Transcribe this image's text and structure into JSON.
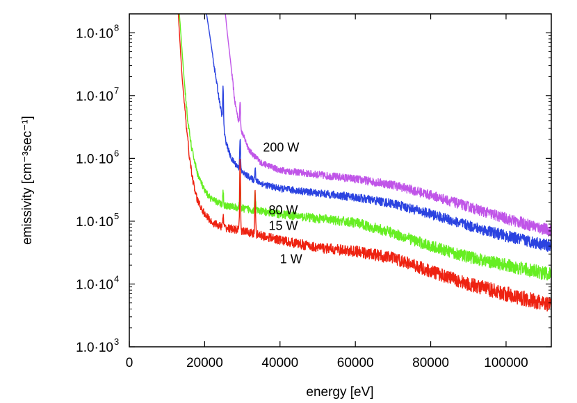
{
  "chart_data": {
    "type": "line",
    "title": "",
    "xlabel": "energy [eV]",
    "ylabel": "emissivity [cm⁻³sec⁻¹]",
    "xlim": [
      0,
      112000
    ],
    "ylim": [
      1000,
      200000000
    ],
    "yscale": "log",
    "x_ticks": [
      {
        "value": 0,
        "label": "0"
      },
      {
        "value": 20000,
        "label": "20000"
      },
      {
        "value": 40000,
        "label": "40000"
      },
      {
        "value": 60000,
        "label": "60000"
      },
      {
        "value": 80000,
        "label": "80000"
      },
      {
        "value": 100000,
        "label": "100000"
      }
    ],
    "y_ticks": [
      {
        "value": 1000,
        "mantissa": "1.0·10",
        "exp": "3"
      },
      {
        "value": 10000,
        "mantissa": "1.0·10",
        "exp": "4"
      },
      {
        "value": 100000,
        "mantissa": "1.0·10",
        "exp": "5"
      },
      {
        "value": 1000000,
        "mantissa": "1.0·10",
        "exp": "6"
      },
      {
        "value": 10000000,
        "mantissa": "1.0·10",
        "exp": "7"
      },
      {
        "value": 100000000,
        "mantissa": "1.0·10",
        "exp": "8"
      }
    ],
    "series": [
      {
        "name": "200 W",
        "color": "#c055e8",
        "noise": 0.07,
        "label_at": [
          35500,
          1500000
        ],
        "points": [
          [
            25500,
            200000000
          ],
          [
            26000,
            100000000
          ],
          [
            27000,
            30000000
          ],
          [
            28000,
            8000000
          ],
          [
            29000,
            4000000
          ],
          [
            30000,
            2500000
          ],
          [
            32000,
            1300000
          ],
          [
            35000,
            850000
          ],
          [
            40000,
            650000
          ],
          [
            50000,
            550000
          ],
          [
            60000,
            470000
          ],
          [
            70000,
            380000
          ],
          [
            80000,
            260000
          ],
          [
            90000,
            170000
          ],
          [
            100000,
            110000
          ],
          [
            112000,
            70000
          ]
        ],
        "peaks": [
          [
            29400,
            0.9
          ]
        ]
      },
      {
        "name": "80 W",
        "color": "#2b43e0",
        "noise": 0.07,
        "label_at": [
          37000,
          150000
        ],
        "points": [
          [
            20500,
            200000000
          ],
          [
            21500,
            80000000
          ],
          [
            22500,
            30000000
          ],
          [
            23500,
            12000000
          ],
          [
            24500,
            5000000
          ],
          [
            25500,
            2000000
          ],
          [
            27000,
            1000000
          ],
          [
            30000,
            600000
          ],
          [
            33000,
            450000
          ],
          [
            36000,
            380000
          ],
          [
            40000,
            330000
          ],
          [
            50000,
            280000
          ],
          [
            60000,
            240000
          ],
          [
            70000,
            190000
          ],
          [
            80000,
            130000
          ],
          [
            90000,
            85000
          ],
          [
            100000,
            58000
          ],
          [
            112000,
            40000
          ]
        ],
        "peaks": [
          [
            24900,
            1.3
          ],
          [
            29400,
            1.1
          ],
          [
            33400,
            0.5
          ]
        ]
      },
      {
        "name": "15 W",
        "color": "#66ee22",
        "noise": 0.08,
        "label_at": [
          37000,
          85000
        ],
        "points": [
          [
            13300,
            200000000
          ],
          [
            14500,
            20000000
          ],
          [
            15500,
            4000000
          ],
          [
            16500,
            1500000
          ],
          [
            18000,
            600000
          ],
          [
            20000,
            300000
          ],
          [
            22000,
            220000
          ],
          [
            25000,
            180000
          ],
          [
            30000,
            160000
          ],
          [
            40000,
            130000
          ],
          [
            50000,
            110000
          ],
          [
            60000,
            95000
          ],
          [
            70000,
            65000
          ],
          [
            80000,
            40000
          ],
          [
            90000,
            27000
          ],
          [
            100000,
            20000
          ],
          [
            112000,
            14000
          ]
        ],
        "peaks": [
          [
            24900,
            0.5
          ],
          [
            29400,
            1.2
          ],
          [
            33400,
            0.7
          ]
        ]
      },
      {
        "name": "1 W",
        "color": "#ee2211",
        "noise": 0.09,
        "label_at": [
          40000,
          25000
        ],
        "points": [
          [
            13000,
            200000000
          ],
          [
            14000,
            20000000
          ],
          [
            15000,
            4000000
          ],
          [
            16000,
            1000000
          ],
          [
            17000,
            400000
          ],
          [
            18000,
            220000
          ],
          [
            20000,
            130000
          ],
          [
            22000,
            95000
          ],
          [
            25000,
            80000
          ],
          [
            30000,
            70000
          ],
          [
            40000,
            50000
          ],
          [
            50000,
            38000
          ],
          [
            60000,
            33000
          ],
          [
            70000,
            26000
          ],
          [
            80000,
            16000
          ],
          [
            90000,
            10000
          ],
          [
            100000,
            7000
          ],
          [
            112000,
            4500
          ]
        ],
        "peaks": [
          [
            24900,
            0.4
          ],
          [
            29400,
            2.5
          ],
          [
            33400,
            1.4
          ]
        ]
      }
    ]
  }
}
